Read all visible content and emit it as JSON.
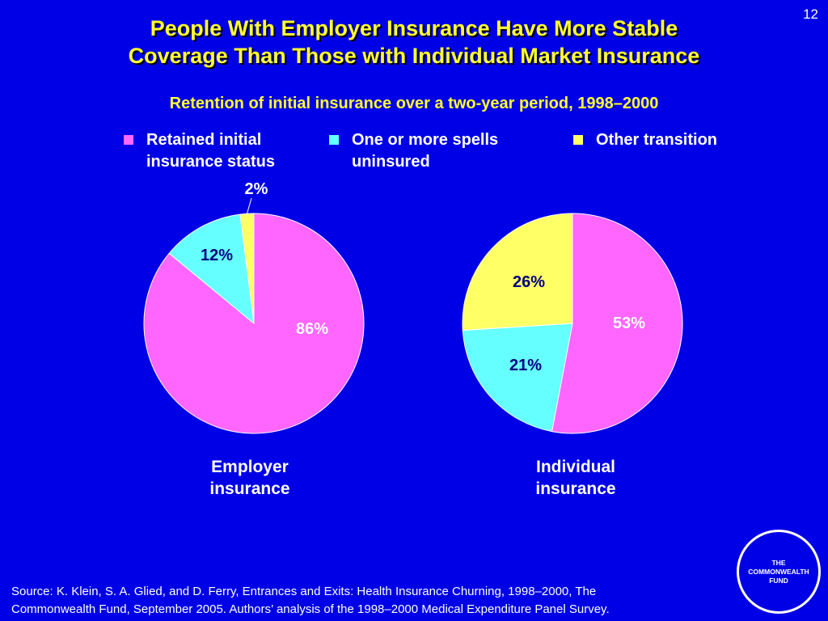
{
  "page_number": "12",
  "title_line1": "People With Employer Insurance Have More Stable",
  "title_line2": "Coverage Than Those with Individual Market Insurance",
  "legend": [
    {
      "line1": "Retained initial",
      "line2": "insurance status",
      "color": "#ff66ff"
    },
    {
      "line1": "One or more spells",
      "line2": "uninsured",
      "color": "#66ffff"
    },
    {
      "line1": "Other transition",
      "line2": "",
      "color": "#ffff66"
    }
  ],
  "chart_data": [
    {
      "type": "pie",
      "title": "Retention of initial insurance over a two-year period, 1998–2000",
      "caption_line1": "Employer",
      "caption_line2": "insurance",
      "slices": [
        {
          "name": "Retained initial insurance status",
          "value": 86,
          "label": "86%",
          "color": "#ff66ff"
        },
        {
          "name": "One or more spells uninsured",
          "value": 12,
          "label": "12%",
          "color": "#66ffff"
        },
        {
          "name": "Other transition",
          "value": 2,
          "label": "2%",
          "color": "#ffff66"
        }
      ]
    },
    {
      "type": "pie",
      "title": "Retention of initial insurance over a two-year period, 1998–2000",
      "caption_line1": "Individual",
      "caption_line2": "insurance",
      "slices": [
        {
          "name": "Retained initial insurance status",
          "value": 53,
          "label": "53%",
          "color": "#ff66ff"
        },
        {
          "name": "One or more spells uninsured",
          "value": 21,
          "label": "21%",
          "color": "#66ffff"
        },
        {
          "name": "Other transition",
          "value": 26,
          "label": "26%",
          "color": "#ffff66"
        }
      ]
    }
  ],
  "source_line1": "Source: K. Klein, S. A. Glied, and D. Ferry, Entrances and Exits: Health Insurance Churning, 1998–2000, The",
  "source_line2": "Commonwealth Fund, September 2005. Authors’ analysis of the 1998–2000 Medical Expenditure Panel Survey.",
  "logo_text": "THE\nCOMMONWEALTH\nFUND"
}
